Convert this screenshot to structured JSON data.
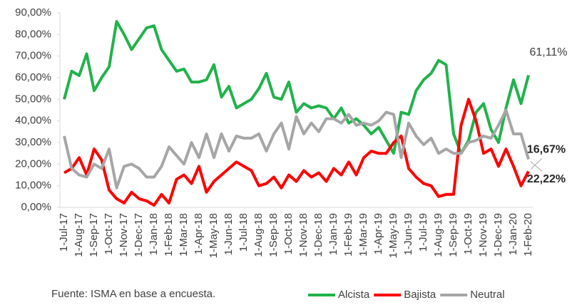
{
  "chart_data": {
    "type": "line",
    "categories": [
      "1-Jul-17",
      null,
      "1-Aug-17",
      null,
      "1-Sep-17",
      null,
      "1-Oct-17",
      null,
      "1-Nov-17",
      null,
      "1-Dec-17",
      null,
      "1-Jan-18",
      null,
      "1-Feb-18",
      null,
      "1-Mar-18",
      null,
      "1-Apr-18",
      null,
      "1-May-18",
      null,
      "1-Jun-18",
      null,
      "1-Jul-18",
      null,
      "1-Aug-18",
      null,
      "1-Sep-18",
      null,
      "1-Oct-18",
      null,
      "1-Nov-18",
      null,
      "1-Dec-18",
      null,
      "1-Jan-19",
      null,
      "1-Feb-19",
      null,
      "1-Mar-19",
      null,
      "1-Apr-19",
      null,
      "1-May-19",
      null,
      "1-Jun-19",
      null,
      "1-Jul-19",
      null,
      "1-Aug-19",
      null,
      "1-Sep-19",
      null,
      "1-Oct-19",
      null,
      "1-Nov-19",
      null,
      "1-Dec-19",
      null,
      "1-Jan-20",
      null,
      "1-Feb-20"
    ],
    "series": [
      {
        "name": "Alcista",
        "color": "#21b24b",
        "values": [
          50,
          63,
          61,
          71,
          54,
          60,
          65,
          86,
          80,
          73,
          78,
          83,
          84,
          73,
          68,
          63,
          64,
          58,
          58,
          59,
          66,
          51,
          56,
          46,
          48,
          50,
          55,
          62,
          51,
          50,
          58,
          44,
          48,
          46,
          47,
          46,
          41,
          46,
          39,
          41,
          38,
          34,
          37,
          31,
          25,
          44,
          43,
          54,
          59,
          62,
          68,
          66,
          34,
          25,
          31,
          44,
          48,
          36,
          30,
          46,
          59,
          48,
          61.11
        ],
        "value_labels": [
          null,
          null,
          null,
          null,
          null,
          null,
          null,
          null,
          null,
          null,
          null,
          null,
          null,
          null,
          null,
          null,
          null,
          null,
          null,
          null,
          null,
          null,
          null,
          null,
          null,
          null,
          null,
          null,
          null,
          null,
          null,
          null,
          null,
          null,
          null,
          null,
          null,
          null,
          null,
          null,
          null,
          null,
          null,
          null,
          null,
          null,
          null,
          null,
          null,
          null,
          null,
          null,
          null,
          null,
          null,
          null,
          null,
          null,
          null,
          null,
          null,
          null,
          "61,11%"
        ]
      },
      {
        "name": "Bajista",
        "color": "#ff0000",
        "values": [
          16,
          18,
          23,
          15,
          27,
          22,
          8,
          4,
          2,
          7,
          4,
          3,
          1,
          6,
          2,
          13,
          15,
          11,
          19,
          7,
          12,
          15,
          18,
          21,
          19,
          17,
          10,
          11,
          14,
          9,
          15,
          12,
          17,
          14,
          16,
          12,
          18,
          15,
          21,
          15,
          23,
          26,
          25,
          25,
          30,
          33,
          18,
          14,
          11,
          10,
          5,
          6,
          6,
          38,
          50,
          40,
          25,
          27,
          19,
          27,
          19,
          10,
          16.67
        ],
        "value_labels": [
          null,
          null,
          null,
          null,
          null,
          null,
          null,
          null,
          null,
          null,
          null,
          null,
          null,
          null,
          null,
          null,
          null,
          null,
          null,
          null,
          null,
          null,
          null,
          null,
          null,
          null,
          null,
          null,
          null,
          null,
          null,
          null,
          null,
          null,
          null,
          null,
          null,
          null,
          null,
          null,
          null,
          null,
          null,
          null,
          null,
          null,
          null,
          null,
          null,
          null,
          null,
          null,
          null,
          null,
          null,
          null,
          null,
          null,
          null,
          null,
          null,
          null,
          "16,67%"
        ]
      },
      {
        "name": "Neutral",
        "color": "#a6a6a6",
        "values": [
          33,
          18,
          15,
          14,
          20,
          18,
          27,
          9,
          19,
          20,
          18,
          14,
          14,
          19,
          28,
          24,
          20,
          30,
          23,
          34,
          23,
          34,
          26,
          33,
          32,
          32,
          34,
          26,
          34,
          39,
          27,
          42,
          34,
          39,
          35,
          41,
          41,
          39,
          43,
          38,
          39,
          38,
          40,
          44,
          43,
          23,
          39,
          33,
          29,
          32,
          25,
          27,
          25,
          25,
          30,
          31,
          33,
          32,
          38,
          45,
          34,
          34,
          22.22
        ],
        "value_labels": [
          null,
          null,
          null,
          null,
          null,
          null,
          null,
          null,
          null,
          null,
          null,
          null,
          null,
          null,
          null,
          null,
          null,
          null,
          null,
          null,
          null,
          null,
          null,
          null,
          null,
          null,
          null,
          null,
          null,
          null,
          null,
          null,
          null,
          null,
          null,
          null,
          null,
          null,
          null,
          null,
          null,
          null,
          null,
          null,
          null,
          null,
          null,
          null,
          null,
          null,
          null,
          null,
          null,
          null,
          null,
          null,
          null,
          null,
          null,
          null,
          null,
          null,
          "22,22%"
        ]
      }
    ],
    "ylim": [
      0,
      90
    ],
    "yticks": [
      {
        "value": 0,
        "label": "0,00%"
      },
      {
        "value": 10,
        "label": "10,00%"
      },
      {
        "value": 20,
        "label": "20,00%"
      },
      {
        "value": 30,
        "label": "30,00%"
      },
      {
        "value": 40,
        "label": "40,00%"
      },
      {
        "value": 50,
        "label": "50,00%"
      },
      {
        "value": 60,
        "label": "60,00%"
      },
      {
        "value": 70,
        "label": "70,00%"
      },
      {
        "value": 80,
        "label": "80,00%"
      },
      {
        "value": 90,
        "label": "90,00%"
      }
    ],
    "source": "Fuente:  ISMA en base a encuesta.",
    "legend": "bottom-right"
  }
}
